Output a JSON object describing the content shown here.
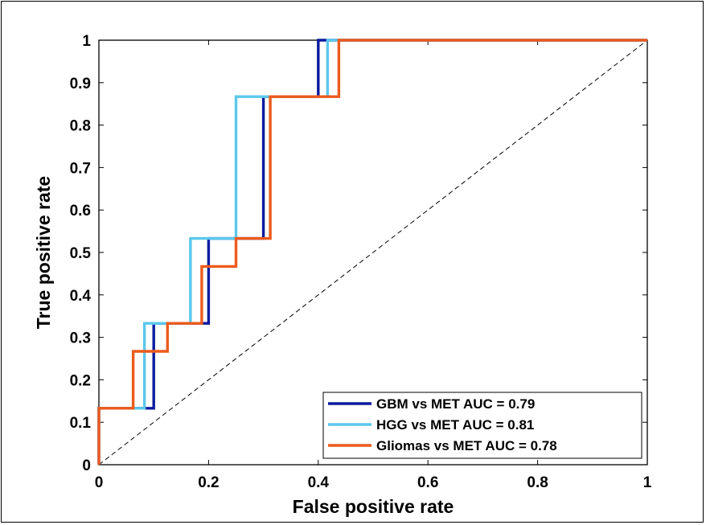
{
  "chart_data": {
    "type": "line",
    "title": "",
    "xlabel": "False positive rate",
    "ylabel": "True positive rate",
    "xlim": [
      0,
      1
    ],
    "ylim": [
      0,
      1
    ],
    "xticks": [
      0,
      0.2,
      0.4,
      0.6,
      0.8,
      1
    ],
    "xtick_labels": [
      "0",
      "0.2",
      "0.4",
      "0.6",
      "0.8",
      "1"
    ],
    "yticks": [
      0,
      0.1,
      0.2,
      0.3,
      0.4,
      0.5,
      0.6,
      0.7,
      0.8,
      0.9,
      1
    ],
    "ytick_labels": [
      "0",
      "0.1",
      "0.2",
      "0.3",
      "0.4",
      "0.5",
      "0.6",
      "0.7",
      "0.8",
      "0.9",
      "1"
    ],
    "grid": false,
    "legend_position": "bottom-right",
    "reference_line": {
      "style": "dashed",
      "color": "#000000",
      "x": [
        0,
        1
      ],
      "y": [
        0,
        1
      ]
    },
    "series": [
      {
        "name": "GBM vs MET AUC = 0.79",
        "color": "#0a1a9e",
        "x": [
          0,
          0,
          0.1,
          0.1,
          0.2,
          0.2,
          0.3,
          0.3,
          0.4,
          0.4,
          1
        ],
        "y": [
          0,
          0.133,
          0.133,
          0.333,
          0.333,
          0.533,
          0.533,
          0.867,
          0.867,
          1,
          1
        ]
      },
      {
        "name": "HGG vs MET AUC = 0.81",
        "color": "#5bc8ec",
        "x": [
          0,
          0,
          0.083,
          0.083,
          0.167,
          0.167,
          0.25,
          0.25,
          0.417,
          0.417,
          1
        ],
        "y": [
          0,
          0.133,
          0.133,
          0.333,
          0.333,
          0.533,
          0.533,
          0.867,
          0.867,
          1,
          1
        ]
      },
      {
        "name": "Gliomas vs MET AUC = 0.78",
        "color": "#ec5a1c",
        "x": [
          0,
          0,
          0.0625,
          0.0625,
          0.125,
          0.125,
          0.1875,
          0.1875,
          0.25,
          0.25,
          0.3125,
          0.3125,
          0.4375,
          0.4375,
          1
        ],
        "y": [
          0,
          0.133,
          0.133,
          0.267,
          0.267,
          0.333,
          0.333,
          0.467,
          0.467,
          0.533,
          0.533,
          0.867,
          0.867,
          1,
          1
        ]
      }
    ]
  }
}
